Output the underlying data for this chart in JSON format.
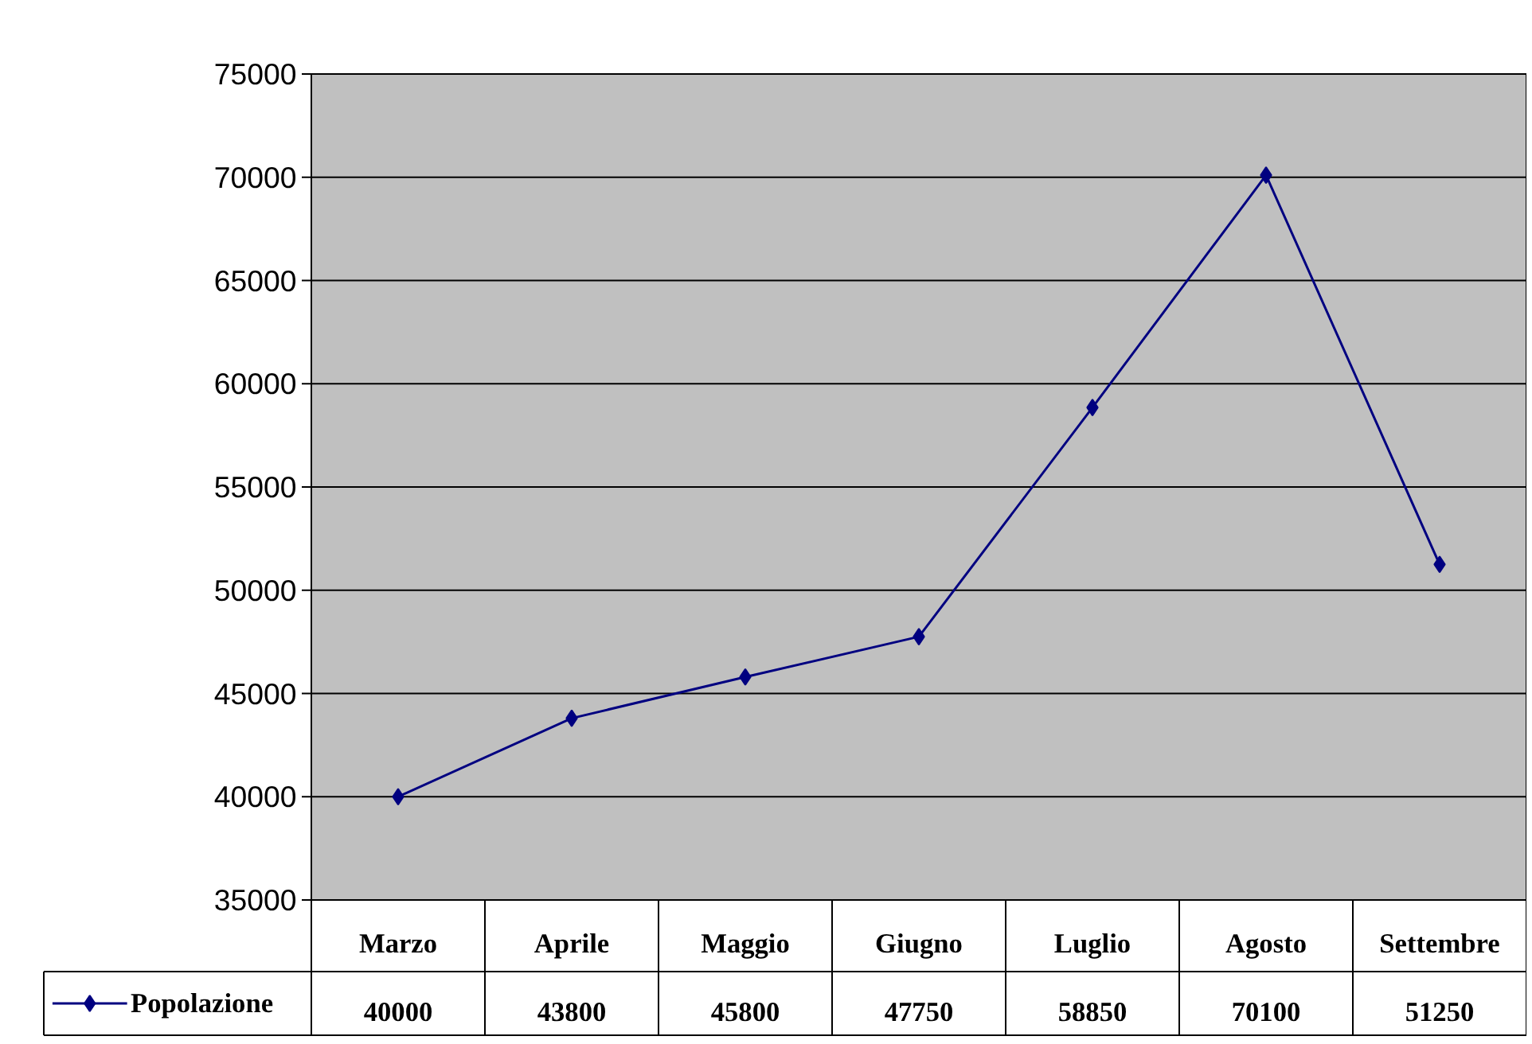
{
  "chart_data": {
    "type": "line",
    "categories": [
      "Marzo",
      "Aprile",
      "Maggio",
      "Giugno",
      "Luglio",
      "Agosto",
      "Settembre"
    ],
    "series": [
      {
        "name": "Popolazione",
        "color": "#000080",
        "values": [
          40000,
          43800,
          45800,
          47750,
          58850,
          70100,
          51250
        ]
      }
    ],
    "ylim": [
      35000,
      75000
    ],
    "yticks": [
      35000,
      40000,
      45000,
      50000,
      55000,
      60000,
      65000,
      70000,
      75000
    ],
    "grid": "y",
    "marker": "diamond",
    "line_style": "solid",
    "legend": "bottom",
    "data_labels": true
  }
}
